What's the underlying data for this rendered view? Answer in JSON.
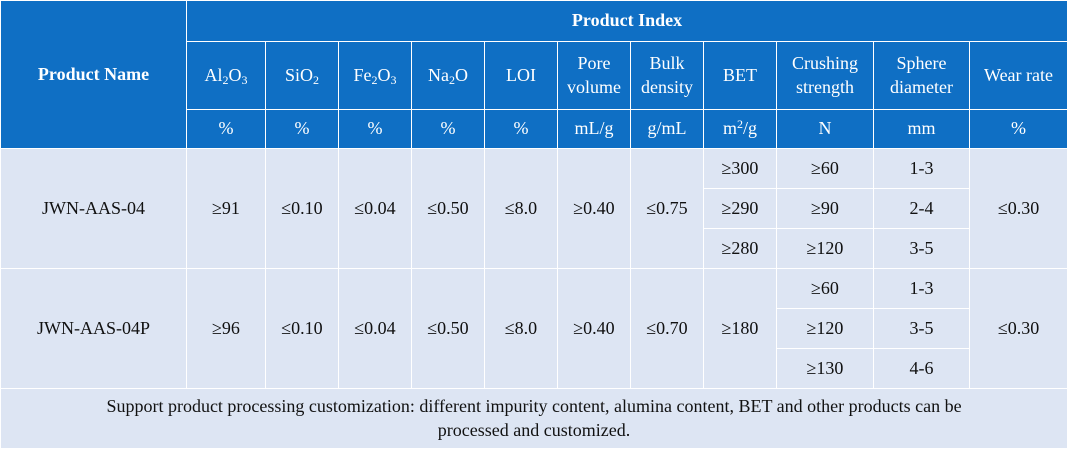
{
  "header": {
    "product_name": "Product Name",
    "product_index": "Product Index"
  },
  "columns": [
    {
      "key": "al2o3",
      "label": {
        "base": "Al",
        "s1": "2",
        "mid": "O",
        "s2": "3"
      },
      "unit": "%"
    },
    {
      "key": "sio2",
      "label": {
        "base": "SiO",
        "s1": "2"
      },
      "unit": "%"
    },
    {
      "key": "fe2o3",
      "label": {
        "base": "Fe",
        "s1": "2",
        "mid": "O",
        "s2": "3"
      },
      "unit": "%"
    },
    {
      "key": "na2o",
      "label": {
        "base": "Na",
        "s1": "2",
        "mid": "O"
      },
      "unit": "%"
    },
    {
      "key": "loi",
      "label_text": "LOI",
      "unit": "%"
    },
    {
      "key": "pore_volume",
      "label_lines": [
        "Pore",
        "volume"
      ],
      "unit": "mL/g"
    },
    {
      "key": "bulk_density",
      "label_lines": [
        "Bulk",
        "density"
      ],
      "unit": "g/mL"
    },
    {
      "key": "bet",
      "label_text": "BET",
      "unit_base": "m",
      "unit_sup": "2",
      "unit_rest": "/g"
    },
    {
      "key": "crushing_strength",
      "label_lines": [
        "Crushing",
        "strength"
      ],
      "unit": "N"
    },
    {
      "key": "sphere_diameter",
      "label_lines": [
        "Sphere",
        "diameter"
      ],
      "unit": "mm"
    },
    {
      "key": "wear_rate",
      "label_text": "Wear rate",
      "unit": "%"
    }
  ],
  "products": [
    {
      "name": "JWN-AAS-04",
      "al2o3": "≥91",
      "sio2": "≤0.10",
      "fe2o3": "≤0.04",
      "na2o": "≤0.50",
      "loi": "≤8.0",
      "pore_volume": "≥0.40",
      "bulk_density": "≤0.75",
      "bet": [
        "≥300",
        "≥290",
        "≥280"
      ],
      "crushing_strength": [
        "≥60",
        "≥90",
        "≥120"
      ],
      "sphere_diameter": [
        "1-3",
        "2-4",
        "3-5"
      ],
      "wear_rate": "≤0.30"
    },
    {
      "name": "JWN-AAS-04P",
      "al2o3": "≥96",
      "sio2": "≤0.10",
      "fe2o3": "≤0.04",
      "na2o": "≤0.50",
      "loi": "≤8.0",
      "pore_volume": "≥0.40",
      "bulk_density": "≤0.70",
      "bet": "≥180",
      "crushing_strength": [
        "≥60",
        "≥120",
        "≥130"
      ],
      "sphere_diameter": [
        "1-3",
        "3-5",
        "4-6"
      ],
      "wear_rate": "≤0.30"
    }
  ],
  "footer": {
    "note_line1": "Support product processing customization: different impurity content, alumina content, BET and other products can be",
    "note_line2": "processed and customized."
  },
  "colors": {
    "header_bg": "#0f6fc4",
    "body_bg": "#dde5f3",
    "header_text": "#ffffff",
    "body_text": "#111111"
  }
}
